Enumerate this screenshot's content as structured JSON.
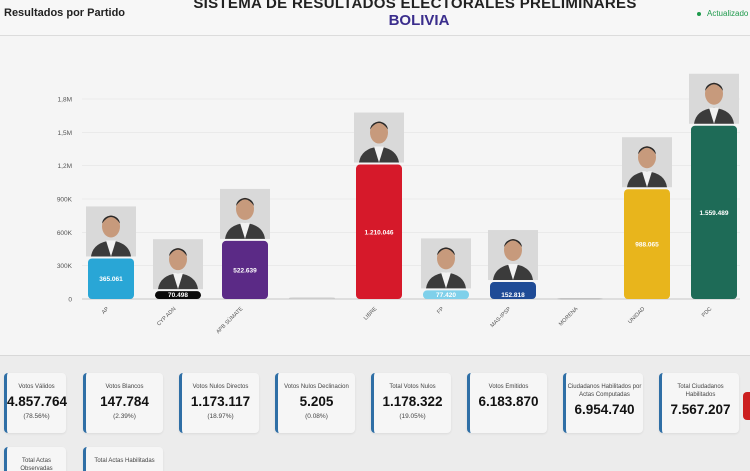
{
  "header": {
    "section_title": "Resultados por Partido",
    "main_title": "SISTEMA DE RESULTADOS ELECTORALES PRELIMINARES",
    "subtitle": "BOLIVIA",
    "update_label": "Actualizado"
  },
  "chart_data": {
    "type": "bar",
    "categories": [
      "AP",
      "CYP ADN",
      "APB SÚMATE",
      "",
      "LIBRE",
      "FP",
      "MAS-IPSP",
      "MORENA",
      "UNIDAD",
      "PDC"
    ],
    "values": [
      365061,
      70498,
      522639,
      14000,
      1210046,
      77420,
      152818,
      8000,
      988065,
      1559489
    ],
    "data_labels": [
      "365.061",
      "70.498",
      "522.639",
      "",
      "1.210.046",
      "77.420",
      "152.818",
      "",
      "988.065",
      "1.559.489"
    ],
    "colors": [
      "#29a6d6",
      "#0b0b0b",
      "#5b2a86",
      "#cccccc",
      "#d6192a",
      "#7fd0ea",
      "#1f4b96",
      "#bbbbbb",
      "#e8b51c",
      "#1e6b57"
    ],
    "candidate_photo": [
      true,
      true,
      true,
      false,
      true,
      true,
      true,
      false,
      true,
      true
    ],
    "yticks": [
      "0",
      "300K",
      "600K",
      "900K",
      "1,2M",
      "1,5M",
      "1,8M"
    ],
    "ylim": [
      0,
      1800000
    ]
  },
  "stats": [
    {
      "label": "Votos Válidos",
      "value": "4.857.764",
      "pct": "(78.56%)"
    },
    {
      "label": "Votos Blancos",
      "value": "147.784",
      "pct": "(2.39%)"
    },
    {
      "label": "Votos Nulos Directos",
      "value": "1.173.117",
      "pct": "(18.97%)"
    },
    {
      "label": "Votos Nulos Declinacion",
      "value": "5.205",
      "pct": "(0.08%)"
    },
    {
      "label": "Total Votos Nulos",
      "value": "1.178.322",
      "pct": "(19.05%)"
    },
    {
      "label": "Votos Emitidos",
      "value": "6.183.870",
      "pct": ""
    },
    {
      "label": "Ciudadanos Habilitados por Actas Computadas",
      "value": "6.954.740",
      "pct": ""
    },
    {
      "label": "Total Ciudadanos Habilitados",
      "value": "7.567.207",
      "pct": ""
    },
    {
      "label": "Total Actas Observadas",
      "value": "",
      "pct": ""
    },
    {
      "label": "Total Actas Habilitadas",
      "value": "",
      "pct": ""
    }
  ],
  "colors": {
    "accent": "#2f6fa6",
    "title_blue": "#3a2d8c",
    "live_green": "#1e9a4c"
  }
}
